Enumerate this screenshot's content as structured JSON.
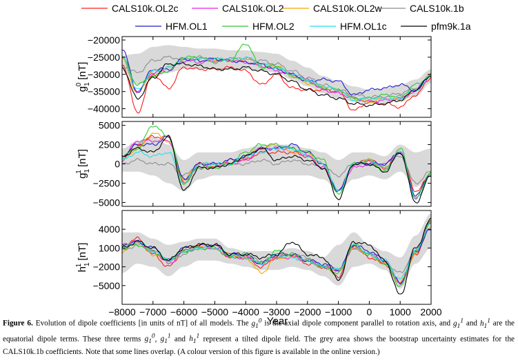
{
  "figure_label": "Figure 6.",
  "caption": {
    "part1": "Evolution of dipole coefficients [in units of nT] of all models. The ",
    "part2": " is the axial dipole component parallel to rotation axis, and ",
    "part3": " and ",
    "part4": " are the equatorial dipole terms. These three terms ",
    "part5": ", ",
    "part6": " and ",
    "part7": " represent a tilted dipole field. The grey area shows the bootstrap uncertainty estimates for the CALS10k.1b coefficients. Note that some lines overlap. (A colour version of this figure is available in the online version.)",
    "g10": "g10",
    "g11": "g11",
    "h11": "h11"
  },
  "colors": {
    "CALS10k.OL2c": "#ff1a1a",
    "CALS10k.OL2": "#e81ee8",
    "CALS10k.OL2w": "#f5a300",
    "CALS10k.1b": "#8c8c8c",
    "HFM.OL1": "#1c1cc8",
    "HFM.OL2": "#2ec82e",
    "HFM.OL1c": "#1ee0e8",
    "pfm9k.1a": "#000000",
    "band": "#d9d9d9"
  },
  "chart_data": [
    {
      "type": "line",
      "panel": "g10",
      "ylabel": "g 1 0 [nT]",
      "ylim": [
        -42500,
        -19000
      ],
      "yticks": [
        -40000,
        -35000,
        -30000,
        -25000,
        -20000
      ],
      "xlim": [
        -8000,
        2000
      ],
      "xticks": [
        -8000,
        -7000,
        -6000,
        -5000,
        -4000,
        -3000,
        -2000,
        -1000,
        0,
        1000,
        2000
      ],
      "x": [
        -8000,
        -7500,
        -7000,
        -6500,
        -6000,
        -5500,
        -5000,
        -4500,
        -4000,
        -3500,
        -3000,
        -2500,
        -2000,
        -1500,
        -1000,
        -500,
        0,
        500,
        1000,
        1500,
        2000
      ],
      "uncertainty_band": {
        "lower": [
          -29000,
          -33000,
          -31000,
          -29500,
          -28500,
          -28500,
          -28500,
          -28500,
          -28500,
          -29000,
          -29500,
          -31500,
          -33500,
          -35500,
          -37000,
          -38000,
          -38500,
          -38500,
          -37500,
          -36500,
          -32500
        ],
        "upper": [
          -24500,
          -24000,
          -22000,
          -21500,
          -22000,
          -22500,
          -22500,
          -23000,
          -23000,
          -23500,
          -24000,
          -26000,
          -28000,
          -30500,
          -32000,
          -33500,
          -34500,
          -34000,
          -33000,
          -31500,
          -28500
        ]
      },
      "series": [
        {
          "name": "CALS10k.OL2c",
          "values": [
            -27000,
            -41000,
            -30000,
            -34000,
            -28000,
            -28500,
            -28500,
            -28000,
            -29000,
            -33000,
            -30000,
            -34000,
            -34500,
            -34500,
            -35000,
            -40500,
            -38000,
            -38500,
            -39500,
            -36000,
            -31000
          ]
        },
        {
          "name": "CALS10k.OL2",
          "values": [
            -25000,
            -35000,
            -29500,
            -29000,
            -26000,
            -26500,
            -26000,
            -26000,
            -26500,
            -27500,
            -29000,
            -30000,
            -31500,
            -34500,
            -35500,
            -37000,
            -38000,
            -37500,
            -37000,
            -35000,
            -30500
          ]
        },
        {
          "name": "CALS10k.OL2w",
          "values": [
            -25500,
            -35500,
            -29000,
            -28000,
            -25500,
            -25500,
            -26000,
            -25500,
            -25500,
            -27000,
            -27500,
            -30500,
            -32500,
            -33500,
            -34500,
            -37000,
            -38000,
            -37000,
            -37500,
            -34500,
            -30000
          ]
        },
        {
          "name": "CALS10k.1b",
          "values": [
            -27500,
            -29500,
            -26000,
            -25000,
            -25500,
            -25000,
            -25500,
            -25500,
            -25500,
            -26000,
            -27000,
            -29000,
            -31000,
            -33000,
            -34500,
            -36000,
            -36500,
            -36500,
            -35500,
            -34000,
            -30500
          ]
        },
        {
          "name": "HFM.OL1",
          "values": [
            -22500,
            -35000,
            -28500,
            -28500,
            -25500,
            -26000,
            -25500,
            -26000,
            -26500,
            -27000,
            -28500,
            -30000,
            -32000,
            -31500,
            -32000,
            -36000,
            -34500,
            -34000,
            -33000,
            -34500,
            -30000
          ]
        },
        {
          "name": "HFM.OL2",
          "values": [
            -25000,
            -33000,
            -30500,
            -29000,
            -25000,
            -25000,
            -26500,
            -26000,
            -21000,
            -28000,
            -27500,
            -30500,
            -32000,
            -34000,
            -34500,
            -37000,
            -37000,
            -36000,
            -36500,
            -33000,
            -30500
          ]
        },
        {
          "name": "HFM.OL1c",
          "values": [
            -25000,
            -34500,
            -29000,
            -28000,
            -25500,
            -25500,
            -25500,
            -25500,
            -25000,
            -27000,
            -28000,
            -30000,
            -31500,
            -33500,
            -34500,
            -37500,
            -37000,
            -37000,
            -37000,
            -34500,
            -30500
          ]
        },
        {
          "name": "pfm9k.1a",
          "values": [
            -28000,
            -37000,
            -31000,
            -27000,
            -27000,
            -27500,
            -28500,
            -28500,
            -28000,
            -29000,
            -30000,
            -32000,
            -34500,
            -36000,
            -37000,
            -38500,
            -39000,
            -38500,
            -37500,
            -34500,
            -30500
          ]
        }
      ]
    },
    {
      "type": "line",
      "panel": "g11",
      "ylabel": "g 1 1 [nT]",
      "ylim": [
        -5500,
        5500
      ],
      "yticks": [
        -5000,
        -2500,
        0,
        2500,
        5000
      ],
      "xlim": [
        -8000,
        2000
      ],
      "xticks": [
        -8000,
        -7000,
        -6000,
        -5000,
        -4000,
        -3000,
        -2000,
        -1000,
        0,
        1000,
        2000
      ],
      "x": [
        -8000,
        -7500,
        -7000,
        -6500,
        -6000,
        -5500,
        -5000,
        -4500,
        -4000,
        -3500,
        -3000,
        -2500,
        -2000,
        -1500,
        -1000,
        -500,
        0,
        500,
        1000,
        1500,
        2000
      ],
      "uncertainty_band": {
        "lower": [
          -1000,
          -1000,
          -1500,
          -2500,
          -3500,
          -2000,
          -1500,
          -1500,
          -1500,
          -1500,
          -1500,
          -1500,
          -1500,
          -2000,
          -3500,
          -2000,
          -1500,
          -2000,
          -1000,
          -3000,
          -1500
        ],
        "upper": [
          2000,
          3000,
          3500,
          2500,
          500,
          1500,
          1500,
          1500,
          2000,
          2500,
          2500,
          2500,
          2000,
          1500,
          500,
          1500,
          1500,
          1000,
          2500,
          1500,
          2000
        ]
      },
      "series": [
        {
          "name": "CALS10k.OL2c",
          "values": [
            1000,
            2500,
            3500,
            3500,
            -2500,
            0,
            -500,
            500,
            500,
            1500,
            1500,
            1500,
            1000,
            -500,
            -3500,
            0,
            500,
            -500,
            1500,
            -3500,
            -1500
          ]
        },
        {
          "name": "CALS10k.OL2",
          "values": [
            500,
            3000,
            3000,
            3000,
            -2000,
            -500,
            0,
            0,
            500,
            2000,
            2000,
            2000,
            1000,
            -500,
            -3500,
            -500,
            0,
            0,
            1500,
            -4500,
            -1000
          ]
        },
        {
          "name": "CALS10k.OL2w",
          "values": [
            500,
            2000,
            4000,
            3000,
            -2000,
            0,
            0,
            0,
            1000,
            2000,
            2500,
            1500,
            1500,
            0,
            -3500,
            0,
            500,
            -500,
            1500,
            -4500,
            -1500
          ]
        },
        {
          "name": "CALS10k.1b",
          "values": [
            0,
            500,
            0,
            0,
            -1500,
            0,
            -500,
            0,
            0,
            500,
            0,
            500,
            0,
            -500,
            -1500,
            0,
            0,
            -500,
            1000,
            -2500,
            -1000
          ]
        },
        {
          "name": "HFM.OL1",
          "values": [
            1000,
            2500,
            2500,
            3500,
            -2000,
            0,
            0,
            500,
            1000,
            2000,
            2000,
            2500,
            1500,
            0,
            -3500,
            0,
            0,
            0,
            1500,
            -4000,
            -1500
          ]
        },
        {
          "name": "HFM.OL2",
          "values": [
            1000,
            2000,
            5000,
            3500,
            -2500,
            -500,
            -500,
            0,
            1500,
            2500,
            2500,
            2000,
            1500,
            500,
            -4000,
            0,
            500,
            -1000,
            2000,
            -4500,
            -1000
          ]
        },
        {
          "name": "HFM.OL1c",
          "values": [
            500,
            1500,
            1000,
            1500,
            -2500,
            0,
            0,
            0,
            1000,
            1500,
            2000,
            2000,
            1000,
            0,
            -3500,
            0,
            500,
            -500,
            1500,
            -4500,
            -1500
          ]
        },
        {
          "name": "pfm9k.1a",
          "values": [
            1000,
            2000,
            1500,
            3500,
            -3500,
            -500,
            -500,
            0,
            1000,
            2000,
            500,
            1000,
            500,
            -500,
            -4500,
            0,
            0,
            -1000,
            1500,
            -5000,
            -1500
          ]
        }
      ]
    },
    {
      "type": "line",
      "panel": "h11",
      "ylabel": "h 1 1 [nT]",
      "ylim": [
        -8000,
        7000
      ],
      "yticks": [
        -5000,
        -2000,
        1000,
        4000
      ],
      "xlim": [
        -8000,
        2000
      ],
      "xticks": [
        -8000,
        -7000,
        -6000,
        -5000,
        -4000,
        -3000,
        -2000,
        -1000,
        0,
        1000,
        2000
      ],
      "xticklabels": [
        "−8000",
        "−7000",
        "−6000",
        "−5000",
        "−4000",
        "−3000",
        "−2000",
        "−1000",
        "0",
        "1000",
        "2000"
      ],
      "xlabel": "Year",
      "x": [
        -8000,
        -7500,
        -7000,
        -6500,
        -6000,
        -5500,
        -5000,
        -4500,
        -4000,
        -3500,
        -3000,
        -2500,
        -2000,
        -1500,
        -1000,
        -500,
        0,
        500,
        1000,
        1500,
        2000
      ],
      "uncertainty_band": {
        "lower": [
          -3000,
          -1500,
          -2000,
          -3500,
          -2000,
          -1000,
          -1000,
          -1500,
          -2000,
          -2500,
          -2500,
          -2000,
          -2500,
          -3500,
          -5000,
          -2000,
          -1500,
          -2500,
          -5500,
          -1500,
          1000
        ],
        "upper": [
          3500,
          3500,
          2500,
          1500,
          2000,
          2500,
          2500,
          1000,
          500,
          500,
          500,
          1000,
          500,
          -500,
          1500,
          3500,
          1500,
          500,
          -500,
          3000,
          6500
        ]
      },
      "series": [
        {
          "name": "CALS10k.OL2c",
          "values": [
            1500,
            2500,
            0,
            -2000,
            500,
            1500,
            1500,
            -500,
            -500,
            -2000,
            -500,
            0,
            -1500,
            -2000,
            -3500,
            1500,
            -500,
            -1500,
            -4500,
            0,
            5000
          ]
        },
        {
          "name": "CALS10k.OL2",
          "values": [
            1000,
            2000,
            500,
            -1500,
            500,
            1000,
            1000,
            -500,
            -500,
            -1500,
            -500,
            -500,
            -1000,
            -2000,
            -2500,
            1000,
            0,
            -1000,
            -4500,
            500,
            5500
          ]
        },
        {
          "name": "CALS10k.OL2w",
          "values": [
            500,
            2000,
            0,
            -1000,
            500,
            1500,
            1000,
            0,
            -500,
            -3000,
            -500,
            -500,
            -1000,
            -2000,
            -2500,
            1000,
            0,
            -1500,
            -4500,
            0,
            4500
          ]
        },
        {
          "name": "CALS10k.1b",
          "values": [
            500,
            1500,
            500,
            -1000,
            0,
            1000,
            1000,
            0,
            -500,
            -1000,
            -500,
            0,
            -500,
            -2000,
            -2500,
            1000,
            0,
            -1500,
            -3000,
            500,
            5000
          ]
        },
        {
          "name": "HFM.OL1",
          "values": [
            1500,
            2000,
            1000,
            -1000,
            1000,
            1500,
            1500,
            0,
            0,
            -1500,
            0,
            0,
            -1000,
            -1500,
            -2500,
            1500,
            500,
            -1000,
            -4500,
            500,
            4000
          ]
        },
        {
          "name": "HFM.OL2",
          "values": [
            1000,
            1500,
            500,
            -1000,
            500,
            1000,
            1000,
            -500,
            0,
            -1500,
            500,
            0,
            -1000,
            -2000,
            -3000,
            1500,
            0,
            -1500,
            -5000,
            500,
            5500
          ]
        },
        {
          "name": "HFM.OL1c",
          "values": [
            1000,
            2000,
            500,
            -1000,
            500,
            1000,
            1000,
            0,
            -500,
            -1500,
            0,
            -500,
            -1000,
            -2000,
            -2500,
            1500,
            0,
            -1000,
            -4000,
            500,
            5000
          ]
        },
        {
          "name": "pfm9k.1a",
          "values": [
            1000,
            2000,
            1000,
            -1000,
            1000,
            1500,
            1500,
            0,
            0,
            -500,
            0,
            2000,
            0,
            -500,
            -4000,
            2000,
            1500,
            -1000,
            -6500,
            1000,
            5500
          ]
        }
      ]
    }
  ]
}
